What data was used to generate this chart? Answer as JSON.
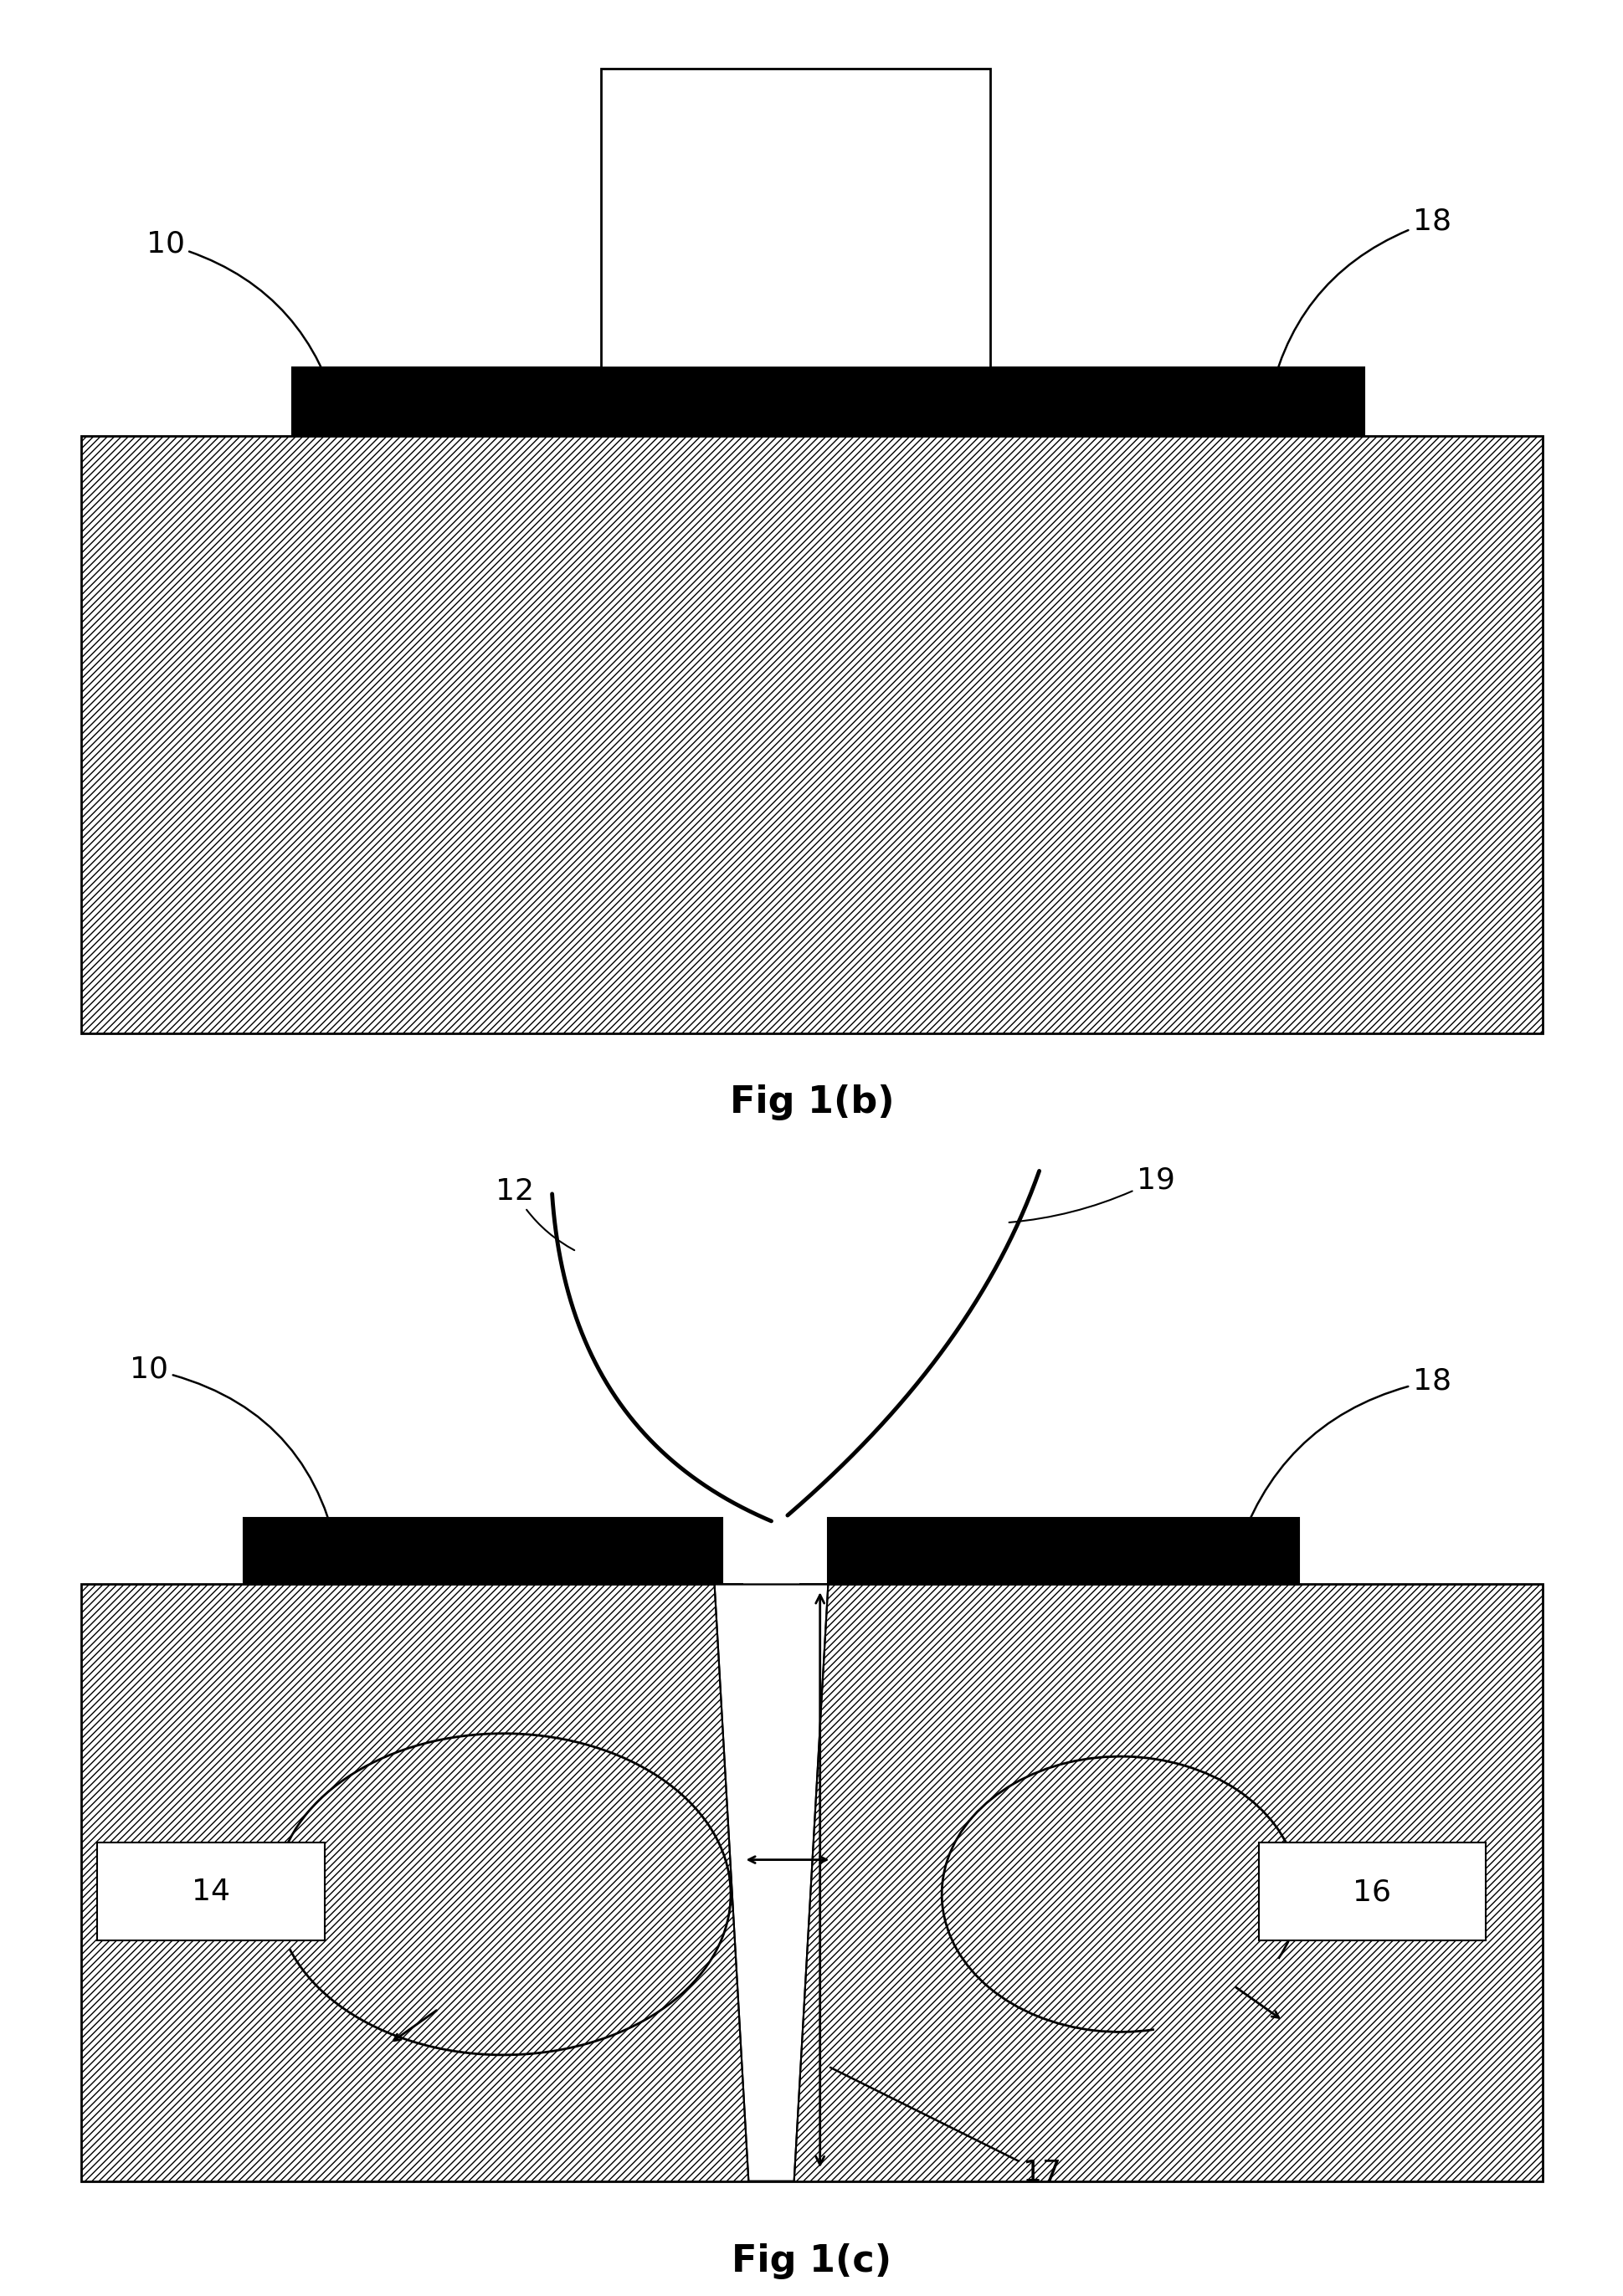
{
  "bg_color": "#ffffff",
  "fig1b_title": "Fig 1(b)",
  "fig1c_title": "Fig 1(c)",
  "lfs": 26,
  "tfs": 32
}
